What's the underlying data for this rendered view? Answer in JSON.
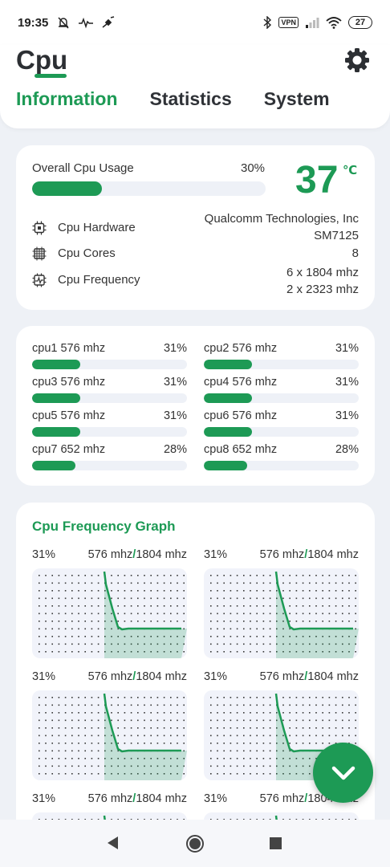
{
  "status_bar": {
    "time": "19:35",
    "vpn_label": "VPN",
    "battery": "27",
    "icons": [
      "bell-muted-icon",
      "pulse-icon",
      "satellite-icon",
      "bluetooth-icon",
      "signal-icon",
      "wifi-icon"
    ]
  },
  "header": {
    "title": "Cpu",
    "settings_icon": "gear-icon",
    "tabs": [
      {
        "label": "Information",
        "active": true
      },
      {
        "label": "Statistics",
        "active": false
      },
      {
        "label": "System",
        "active": false
      }
    ]
  },
  "overview": {
    "usage_label": "Overall Cpu Usage",
    "usage_percent_text": "30%",
    "usage_fraction": 0.3,
    "temperature": "37",
    "temperature_unit": "℃",
    "rows": [
      {
        "icon": "chip-icon",
        "label": "Cpu Hardware",
        "value_line1": "Qualcomm Technologies, Inc",
        "value_line2": "SM7125"
      },
      {
        "icon": "cores-icon",
        "label": "Cpu Cores",
        "value_line1": "8",
        "value_line2": ""
      },
      {
        "icon": "frequency-icon",
        "label": "Cpu Frequency",
        "value_line1": "6 x 1804 mhz",
        "value_line2": "2 x 2323 mhz"
      }
    ]
  },
  "cores": [
    {
      "name": "cpu1  576 mhz",
      "percent_text": "31%",
      "fraction": 0.31
    },
    {
      "name": "cpu2  576 mhz",
      "percent_text": "31%",
      "fraction": 0.31
    },
    {
      "name": "cpu3  576 mhz",
      "percent_text": "31%",
      "fraction": 0.31
    },
    {
      "name": "cpu4  576 mhz",
      "percent_text": "31%",
      "fraction": 0.31
    },
    {
      "name": "cpu5  576 mhz",
      "percent_text": "31%",
      "fraction": 0.31
    },
    {
      "name": "cpu6  576 mhz",
      "percent_text": "31%",
      "fraction": 0.31
    },
    {
      "name": "cpu7  652 mhz",
      "percent_text": "28%",
      "fraction": 0.28
    },
    {
      "name": "cpu8  652 mhz",
      "percent_text": "28%",
      "fraction": 0.28
    }
  ],
  "graphs": {
    "title": "Cpu Frequency Graph",
    "separator": "/",
    "items": [
      {
        "percent": "31%",
        "current": "576 mhz",
        "max": "1804 mhz"
      },
      {
        "percent": "31%",
        "current": "576 mhz",
        "max": "1804 mhz"
      },
      {
        "percent": "31%",
        "current": "576 mhz",
        "max": "1804 mhz"
      },
      {
        "percent": "31%",
        "current": "576 mhz",
        "max": "1804 mhz"
      },
      {
        "percent": "31%",
        "current": "576 mhz",
        "max": "1804 mhz"
      },
      {
        "percent": "31%",
        "current": "576 mhz",
        "max": "1804 mhz"
      }
    ]
  },
  "fab_icon": "chevron-down-icon",
  "nav": {
    "back": "back-icon",
    "home": "home-icon",
    "recents": "recents-icon"
  },
  "colors": {
    "accent": "#1d9a55",
    "track": "#eef1f7",
    "background": "#eef1f6"
  }
}
